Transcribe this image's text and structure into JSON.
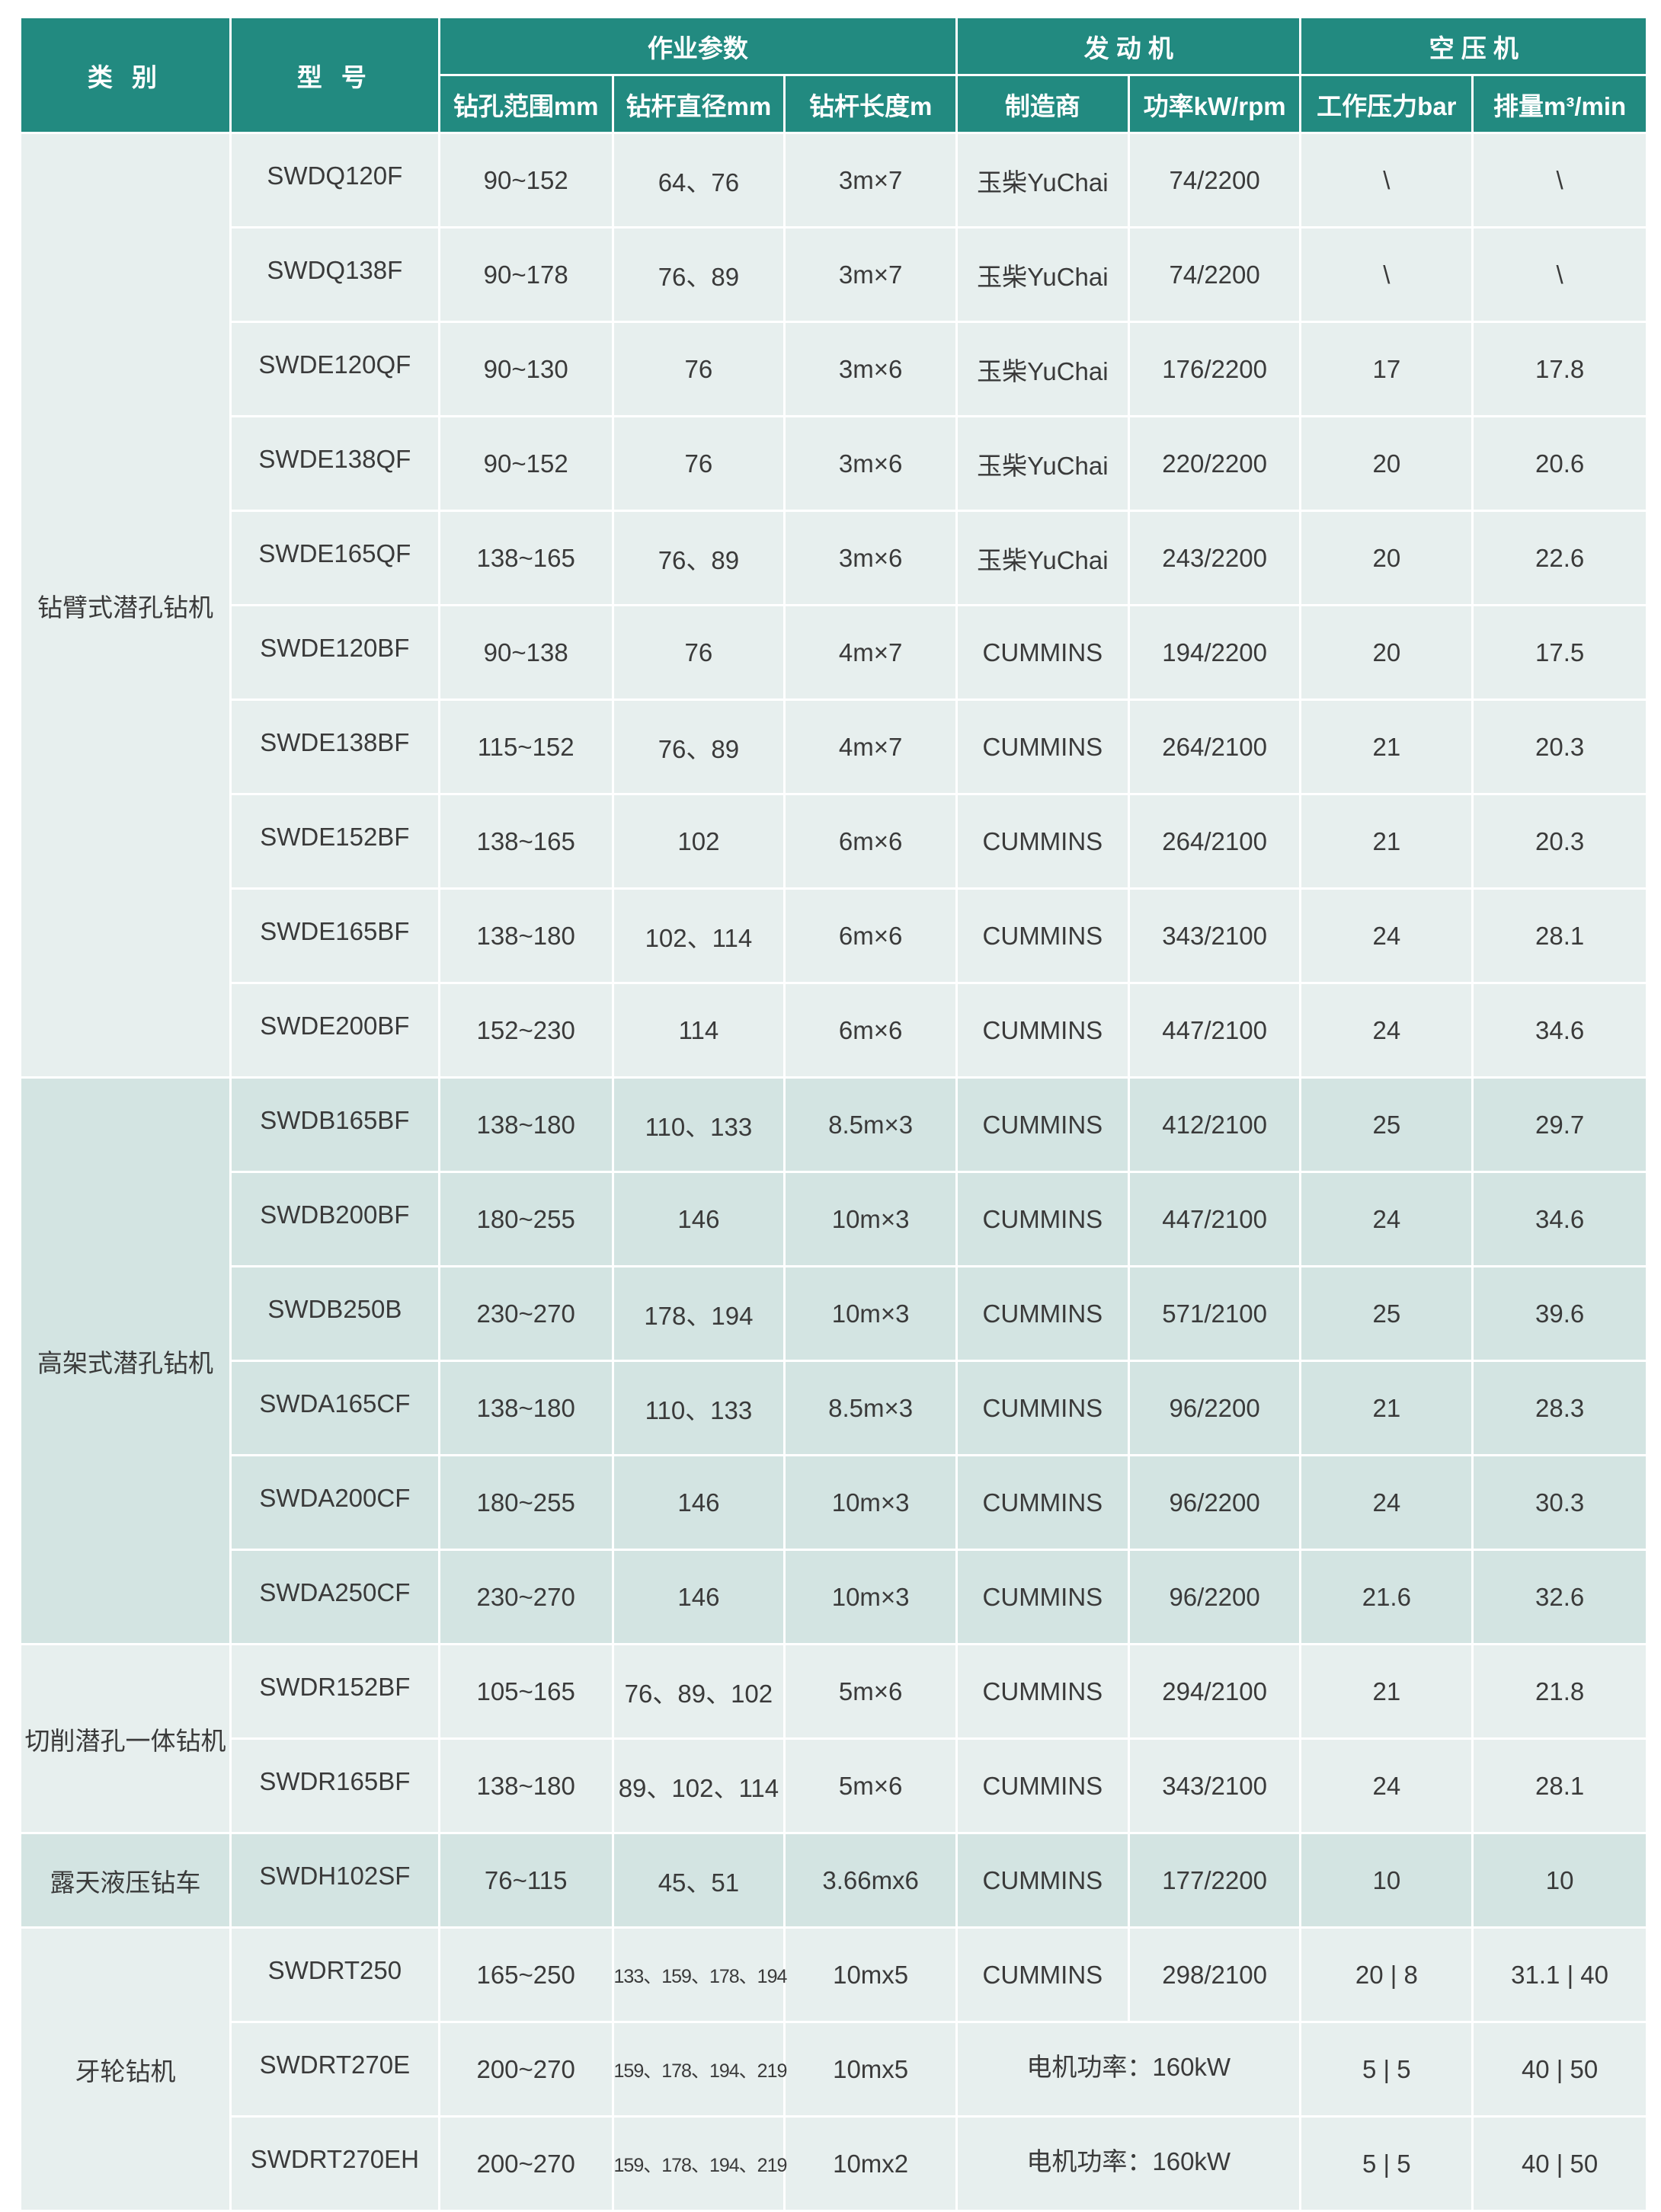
{
  "colors": {
    "header": "#228a80",
    "row_light": "#e7efee",
    "row_dark": "#d3e4e2"
  },
  "header": {
    "category": "类 别",
    "model": "型 号",
    "groups": [
      "作业参数",
      "发 动 机",
      "空 压 机"
    ],
    "columns": [
      "钻孔范围mm",
      "钻杆直径mm",
      "钻杆长度m",
      "制造商",
      "功率kW/rpm",
      "工作压力bar",
      "排量m³/min"
    ]
  },
  "groups": [
    {
      "category": "钻臂式潜孔钻机",
      "shade": "light",
      "rows": [
        [
          "SWDQ120F",
          "90~152",
          "64、76",
          "3m×7",
          "玉柴YuChai",
          "74/2200",
          "\\",
          "\\"
        ],
        [
          "SWDQ138F",
          "90~178",
          "76、89",
          "3m×7",
          "玉柴YuChai",
          "74/2200",
          "\\",
          "\\"
        ],
        [
          "SWDE120QF",
          "90~130",
          "76",
          "3m×6",
          "玉柴YuChai",
          "176/2200",
          "17",
          "17.8"
        ],
        [
          "SWDE138QF",
          "90~152",
          "76",
          "3m×6",
          "玉柴YuChai",
          "220/2200",
          "20",
          "20.6"
        ],
        [
          "SWDE165QF",
          "138~165",
          "76、89",
          "3m×6",
          "玉柴YuChai",
          "243/2200",
          "20",
          "22.6"
        ],
        [
          "SWDE120BF",
          "90~138",
          "76",
          "4m×7",
          "CUMMINS",
          "194/2200",
          "20",
          "17.5"
        ],
        [
          "SWDE138BF",
          "115~152",
          "76、89",
          "4m×7",
          "CUMMINS",
          "264/2100",
          "21",
          "20.3"
        ],
        [
          "SWDE152BF",
          "138~165",
          "102",
          "6m×6",
          "CUMMINS",
          "264/2100",
          "21",
          "20.3"
        ],
        [
          "SWDE165BF",
          "138~180",
          "102、114",
          "6m×6",
          "CUMMINS",
          "343/2100",
          "24",
          "28.1"
        ],
        [
          "SWDE200BF",
          "152~230",
          "114",
          "6m×6",
          "CUMMINS",
          "447/2100",
          "24",
          "34.6"
        ]
      ]
    },
    {
      "category": "高架式潜孔钻机",
      "shade": "dark",
      "rows": [
        [
          "SWDB165BF",
          "138~180",
          "110、133",
          "8.5m×3",
          "CUMMINS",
          "412/2100",
          "25",
          "29.7"
        ],
        [
          "SWDB200BF",
          "180~255",
          "146",
          "10m×3",
          "CUMMINS",
          "447/2100",
          "24",
          "34.6"
        ],
        [
          "SWDB250B",
          "230~270",
          "178、194",
          "10m×3",
          "CUMMINS",
          "571/2100",
          "25",
          "39.6"
        ],
        [
          "SWDA165CF",
          "138~180",
          "110、133",
          "8.5m×3",
          "CUMMINS",
          "96/2200",
          "21",
          "28.3"
        ],
        [
          "SWDA200CF",
          "180~255",
          "146",
          "10m×3",
          "CUMMINS",
          "96/2200",
          "24",
          "30.3"
        ],
        [
          "SWDA250CF",
          "230~270",
          "146",
          "10m×3",
          "CUMMINS",
          "96/2200",
          "21.6",
          "32.6"
        ]
      ]
    },
    {
      "category": "切削潜孔一体钻机",
      "shade": "light",
      "rows": [
        [
          "SWDR152BF",
          "105~165",
          "76、89、102",
          "5m×6",
          "CUMMINS",
          "294/2100",
          "21",
          "21.8"
        ],
        [
          "SWDR165BF",
          "138~180",
          "89、102、114",
          "5m×6",
          "CUMMINS",
          "343/2100",
          "24",
          "28.1"
        ]
      ]
    },
    {
      "category": "露天液压钻车",
      "shade": "dark",
      "rows": [
        [
          "SWDH102SF",
          "76~115",
          "45、51",
          "3.66mx6",
          "CUMMINS",
          "177/2200",
          "10",
          "10"
        ]
      ]
    },
    {
      "category": "牙轮钻机",
      "shade": "light",
      "rows": [
        [
          "SWDRT250",
          "165~250",
          "133、159、178、194",
          "10mx5",
          "CUMMINS",
          "298/2100",
          "20 | 8",
          "31.1 | 40"
        ],
        [
          "SWDRT270E",
          "200~270",
          "159、178、194、219",
          "10mx5",
          "电机功率：160kW",
          null,
          "5 | 5",
          "40 | 50"
        ],
        [
          "SWDRT270EH",
          "200~270",
          "159、178、194、219",
          "10mx2",
          "电机功率：160kW",
          null,
          "5 | 5",
          "40 | 50"
        ]
      ]
    }
  ]
}
